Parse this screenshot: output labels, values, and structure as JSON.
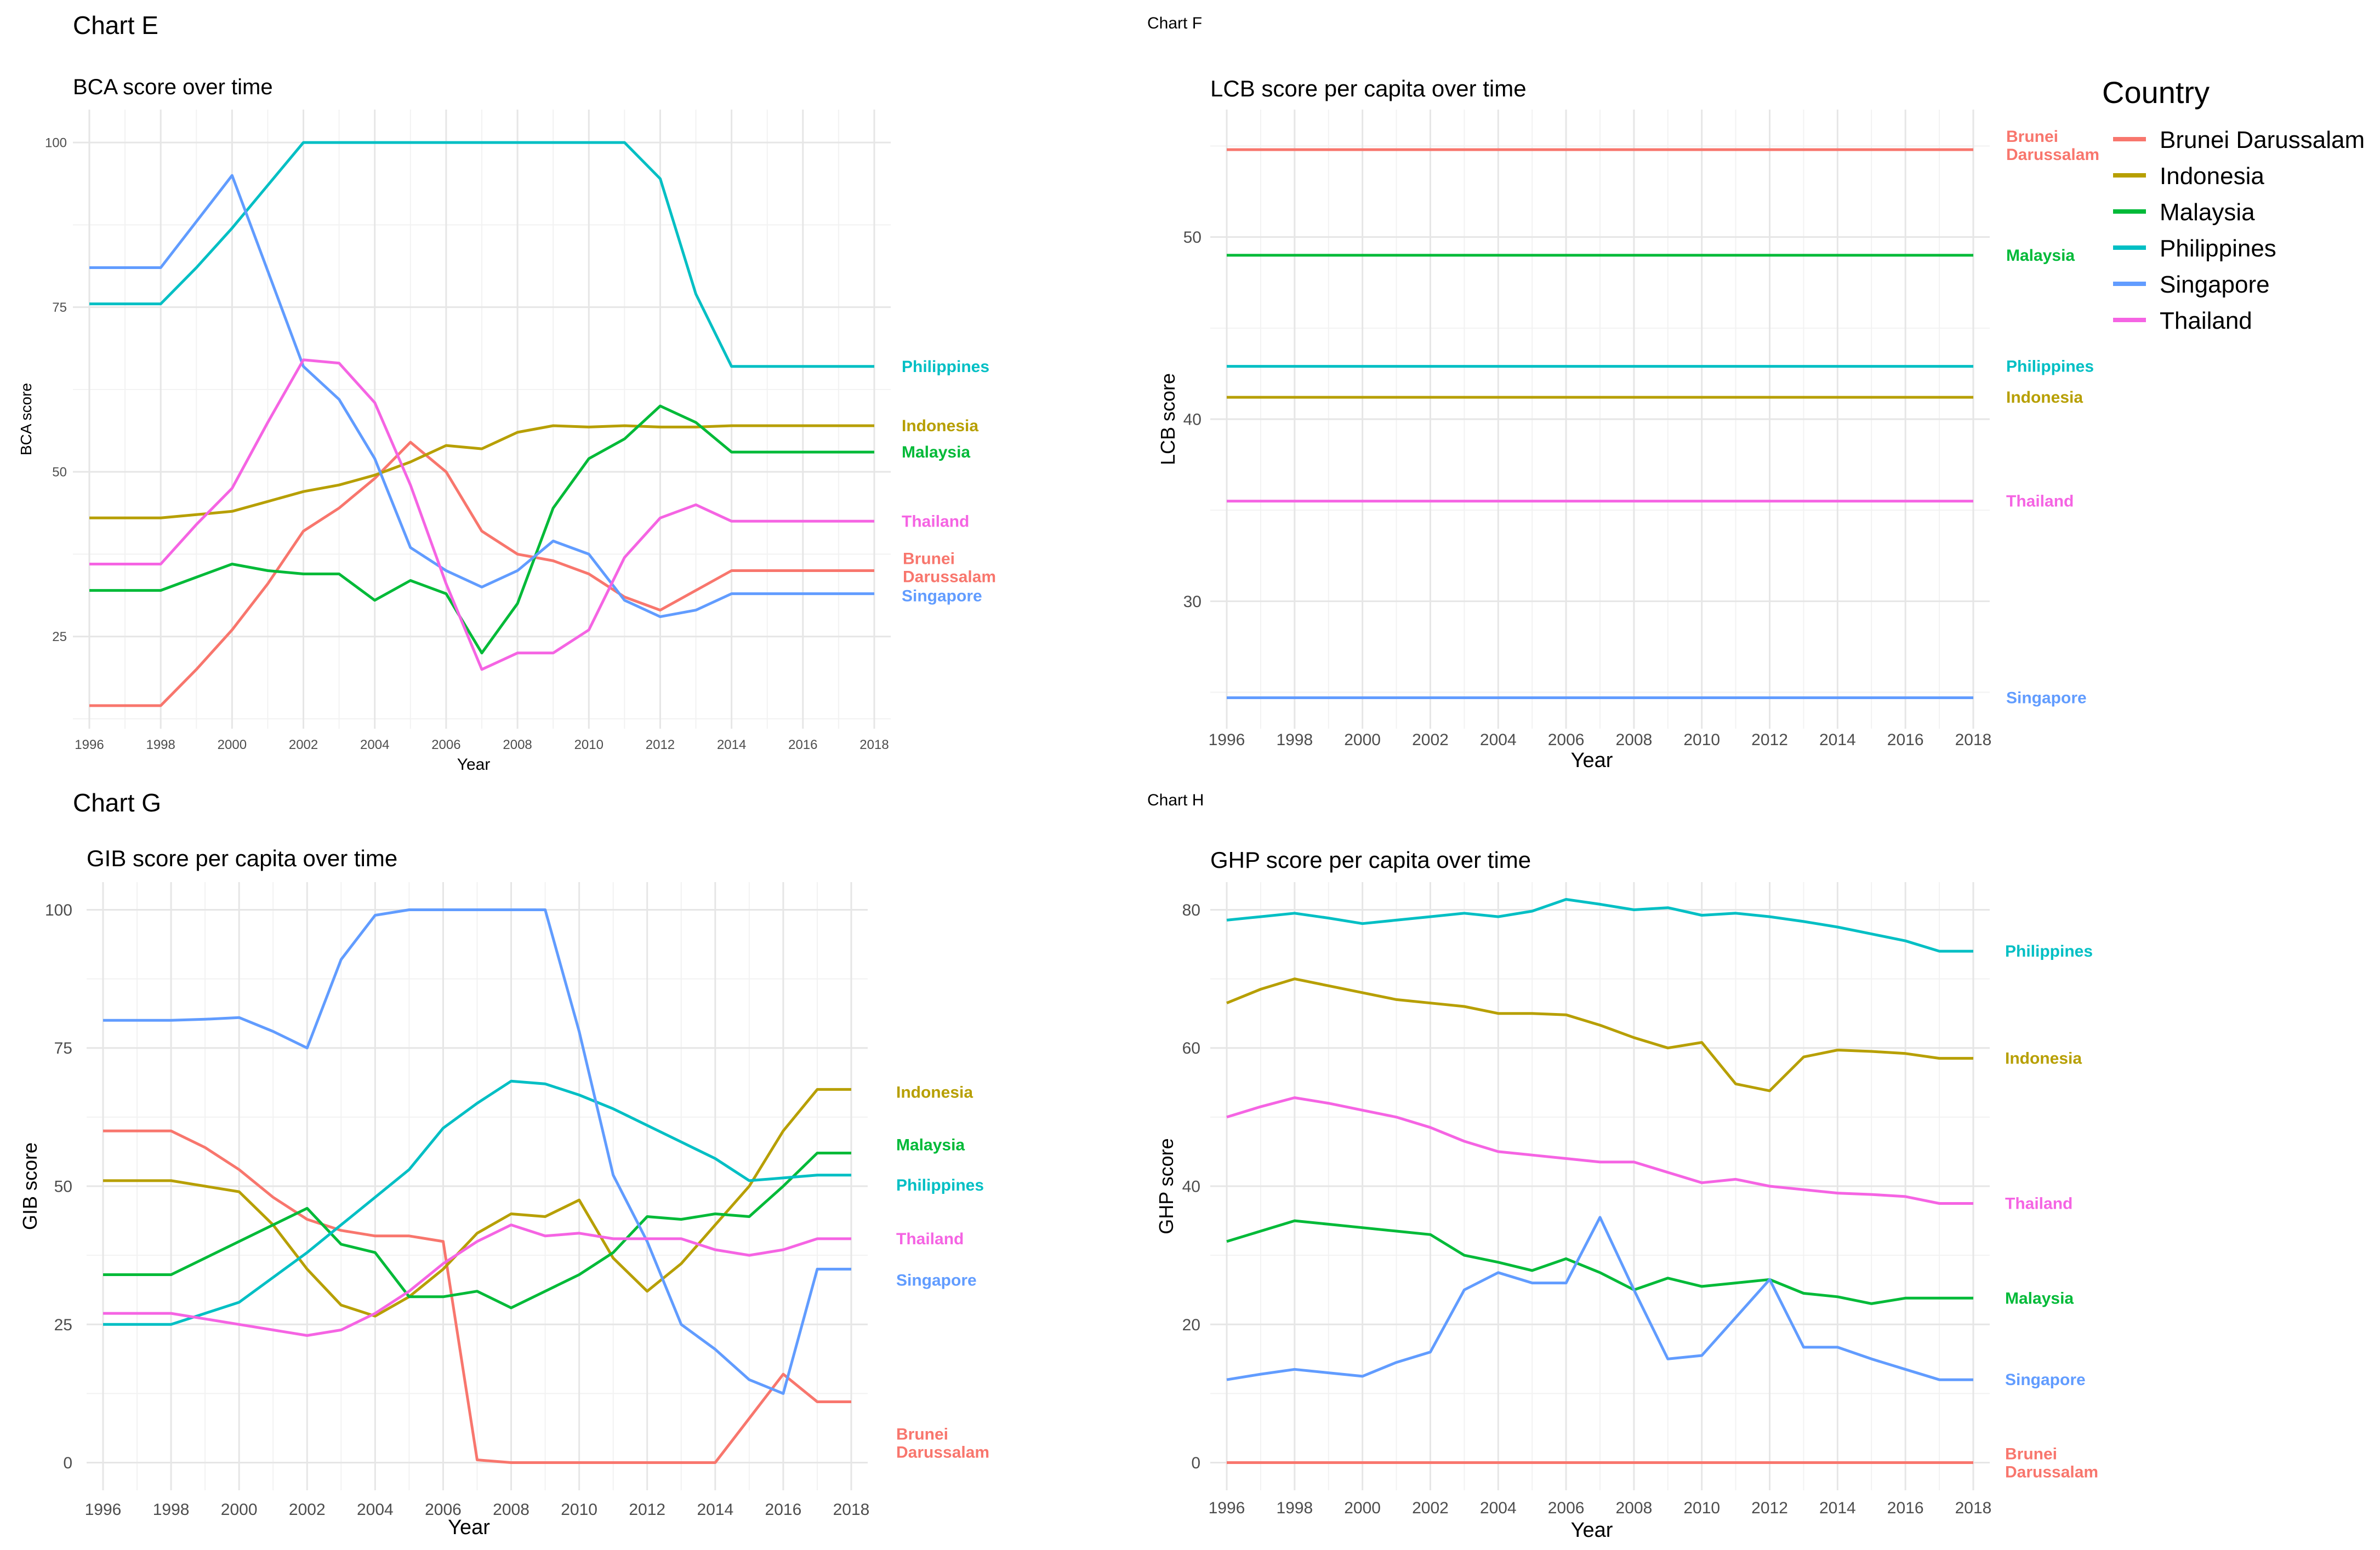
{
  "colors": {
    "Brunei Darussalam": "#F8766D",
    "Indonesia": "#B79F00",
    "Malaysia": "#00BA38",
    "Philippines": "#00BFC4",
    "Singapore": "#619CFF",
    "Thailand": "#F564E3"
  },
  "legend": {
    "title": "Country",
    "items": [
      "Brunei Darussalam",
      "Indonesia",
      "Malaysia",
      "Philippines",
      "Singapore",
      "Thailand"
    ]
  },
  "chart_data": [
    {
      "id": "E",
      "heading": "Chart E",
      "type": "line",
      "title": "BCA score over time",
      "xlabel": "Year",
      "ylabel": "BCA score",
      "xlim": [
        1996,
        2018
      ],
      "ylim": [
        11,
        105
      ],
      "xticks": [
        1996,
        1998,
        2000,
        2002,
        2004,
        2006,
        2008,
        2010,
        2012,
        2014,
        2016,
        2018
      ],
      "yticks": [
        25,
        50,
        75,
        100
      ],
      "x": [
        1996,
        1997,
        1998,
        1999,
        2000,
        2001,
        2002,
        2003,
        2004,
        2005,
        2006,
        2007,
        2008,
        2009,
        2010,
        2011,
        2012,
        2013,
        2014,
        2015,
        2016,
        2017,
        2018
      ],
      "series": [
        {
          "name": "Brunei Darussalam",
          "label": "Brunei Darussalam",
          "values": [
            14.5,
            14.5,
            14.5,
            20,
            26,
            33,
            41,
            44.5,
            49,
            54.5,
            50,
            41,
            37.5,
            36.5,
            34.5,
            31,
            29,
            32,
            35,
            35,
            35,
            35,
            35
          ]
        },
        {
          "name": "Indonesia",
          "label": "Indonesia",
          "values": [
            43,
            43,
            43,
            43.5,
            44,
            45.5,
            47,
            48,
            49.5,
            51.5,
            54,
            53.5,
            56,
            57,
            56.8,
            57,
            56.8,
            56.8,
            57,
            57,
            57,
            57,
            57
          ]
        },
        {
          "name": "Malaysia",
          "label": "Malaysia",
          "values": [
            32,
            32,
            32,
            34,
            36,
            35,
            34.5,
            34.5,
            30.5,
            33.5,
            31.5,
            22.5,
            30,
            44.5,
            52,
            55,
            60,
            57.5,
            53,
            53,
            53,
            53,
            53
          ]
        },
        {
          "name": "Philippines",
          "label": "Philippines",
          "values": [
            75.5,
            75.5,
            75.5,
            81,
            87,
            93.5,
            100,
            100,
            100,
            100,
            100,
            100,
            100,
            100,
            100,
            100,
            94.5,
            77,
            66,
            66,
            66,
            66,
            66
          ]
        },
        {
          "name": "Singapore",
          "label": "Singapore",
          "values": [
            81,
            81,
            81,
            88,
            95,
            80.5,
            66,
            61,
            52,
            38.5,
            35,
            32.5,
            35,
            39.5,
            37.5,
            30.5,
            28,
            29,
            31.5,
            31.5,
            31.5,
            31.5,
            31.5
          ]
        },
        {
          "name": "Thailand",
          "label": "Thailand",
          "values": [
            36,
            36,
            36,
            42,
            47.5,
            57.5,
            67,
            66.5,
            60.5,
            48,
            33,
            20,
            22.5,
            22.5,
            26,
            37,
            43,
            45,
            42.5,
            42.5,
            42.5,
            42.5,
            42.5
          ]
        }
      ]
    },
    {
      "id": "F",
      "heading": "Chart F",
      "type": "line",
      "title": "LCB score per capita over time",
      "xlabel": "Year",
      "ylabel": "LCB score",
      "xlim": [
        1996,
        2018
      ],
      "ylim": [
        23,
        57
      ],
      "xticks": [
        1996,
        1998,
        2000,
        2002,
        2004,
        2006,
        2008,
        2010,
        2012,
        2014,
        2016,
        2018
      ],
      "yticks": [
        30,
        40,
        50
      ],
      "x": [
        1996,
        2018
      ],
      "series": [
        {
          "name": "Brunei Darussalam",
          "label": "Brunei Darussalam",
          "values": [
            54.8,
            54.8
          ]
        },
        {
          "name": "Indonesia",
          "label": "Indonesia",
          "values": [
            41.2,
            41.2
          ]
        },
        {
          "name": "Malaysia",
          "label": "Malaysia",
          "values": [
            49,
            49
          ]
        },
        {
          "name": "Philippines",
          "label": "Philippines",
          "values": [
            42.9,
            42.9
          ]
        },
        {
          "name": "Singapore",
          "label": "Singapore",
          "values": [
            24.7,
            24.7
          ]
        },
        {
          "name": "Thailand",
          "label": "Thailand",
          "values": [
            35.5,
            35.5
          ]
        }
      ]
    },
    {
      "id": "G",
      "heading": "Chart G",
      "type": "line",
      "title": "GIB score per capita over time",
      "xlabel": "Year",
      "ylabel": "GIB score",
      "xlim": [
        1996,
        2018
      ],
      "ylim": [
        -5,
        105
      ],
      "xticks": [
        1996,
        1998,
        2000,
        2002,
        2004,
        2006,
        2008,
        2010,
        2012,
        2014,
        2016,
        2018
      ],
      "yticks": [
        0,
        25,
        50,
        75,
        100
      ],
      "x": [
        1996,
        1997,
        1998,
        1999,
        2000,
        2001,
        2002,
        2003,
        2004,
        2005,
        2006,
        2007,
        2008,
        2009,
        2010,
        2011,
        2012,
        2013,
        2014,
        2015,
        2016,
        2017,
        2018
      ],
      "series": [
        {
          "name": "Brunei Darussalam",
          "label": "Brunei Darussalam",
          "values": [
            60,
            60,
            60,
            57,
            53,
            48,
            44,
            42,
            41,
            41,
            40,
            0.5,
            0,
            0,
            0,
            0,
            0,
            0,
            0,
            8,
            16,
            11,
            11
          ]
        },
        {
          "name": "Indonesia",
          "label": "Indonesia",
          "values": [
            51,
            51,
            51,
            50,
            49,
            43,
            35,
            28.5,
            26.5,
            30,
            35,
            41.5,
            45,
            44.5,
            47.5,
            37,
            31,
            36,
            43,
            50,
            60,
            67.5,
            67.5
          ]
        },
        {
          "name": "Malaysia",
          "label": "Malaysia",
          "values": [
            34,
            34,
            34,
            37,
            40,
            43,
            46,
            39.5,
            38,
            30,
            30,
            31,
            28,
            31,
            34,
            38,
            44.5,
            44,
            45,
            44.5,
            50,
            56,
            56
          ]
        },
        {
          "name": "Philippines",
          "label": "Philippines",
          "values": [
            25,
            25,
            25,
            27,
            29,
            33.5,
            38,
            43,
            48,
            53,
            60.5,
            65,
            69,
            68.5,
            66.5,
            64,
            61,
            58,
            55,
            51,
            51.5,
            52,
            52
          ]
        },
        {
          "name": "Singapore",
          "label": "Singapore",
          "values": [
            80,
            80,
            80,
            80.2,
            80.5,
            78,
            75,
            91,
            99,
            100,
            100,
            100,
            100,
            100,
            78,
            52,
            40,
            25,
            20.5,
            15,
            12.5,
            35,
            35
          ]
        },
        {
          "name": "Thailand",
          "label": "Thailand",
          "values": [
            27,
            27,
            27,
            26,
            25,
            24,
            23,
            24,
            27,
            31,
            36,
            40,
            43,
            41,
            41.5,
            40.5,
            40.5,
            40.5,
            38.5,
            37.5,
            38.5,
            40.5,
            40.5
          ]
        }
      ]
    },
    {
      "id": "H",
      "heading": "Chart H",
      "type": "line",
      "title": "GHP score per capita over time",
      "xlabel": "Year",
      "ylabel": "GHP score",
      "xlim": [
        1996,
        2018
      ],
      "ylim": [
        -4,
        84
      ],
      "xticks": [
        1996,
        1998,
        2000,
        2002,
        2004,
        2006,
        2008,
        2010,
        2012,
        2014,
        2016,
        2018
      ],
      "yticks": [
        0,
        20,
        40,
        60,
        80
      ],
      "x": [
        1996,
        1997,
        1998,
        1999,
        2000,
        2001,
        2002,
        2003,
        2004,
        2005,
        2006,
        2007,
        2008,
        2009,
        2010,
        2011,
        2012,
        2013,
        2014,
        2015,
        2016,
        2017,
        2018
      ],
      "series": [
        {
          "name": "Brunei Darussalam",
          "label": "Brunei Darussalam",
          "values": [
            0,
            0,
            0,
            0,
            0,
            0,
            0,
            0,
            0,
            0,
            0,
            0,
            0,
            0,
            0,
            0,
            0,
            0,
            0,
            0,
            0,
            0,
            0
          ]
        },
        {
          "name": "Indonesia",
          "label": "Indonesia",
          "values": [
            66.5,
            68.5,
            70,
            69,
            68,
            67,
            66.5,
            66,
            65,
            65,
            64.8,
            63.3,
            61.5,
            60,
            60.8,
            54.8,
            53.8,
            58.7,
            59.7,
            59.5,
            59.2,
            58.5,
            58.5
          ]
        },
        {
          "name": "Malaysia",
          "label": "Malaysia",
          "values": [
            32,
            33.5,
            35,
            34.5,
            34,
            33.5,
            33,
            30,
            29,
            27.8,
            29.5,
            27.5,
            25,
            26.7,
            25.5,
            26,
            26.5,
            24.5,
            24,
            23,
            23.8,
            23.8,
            23.8
          ]
        },
        {
          "name": "Philippines",
          "label": "Philippines",
          "values": [
            78.5,
            79,
            79.5,
            78.8,
            78,
            78.5,
            79,
            79.5,
            79,
            79.8,
            81.5,
            80.8,
            80,
            80.3,
            79.2,
            79.5,
            79,
            78.3,
            77.5,
            76.5,
            75.5,
            74,
            74
          ]
        },
        {
          "name": "Singapore",
          "label": "Singapore",
          "values": [
            12,
            12.8,
            13.5,
            13,
            12.5,
            14.5,
            16,
            25,
            27.5,
            26,
            26,
            35.5,
            25,
            15,
            15.5,
            21,
            26.5,
            16.7,
            16.7,
            15,
            13.5,
            12,
            12
          ]
        },
        {
          "name": "Thailand",
          "label": "Thailand",
          "values": [
            50,
            51.5,
            52.8,
            52,
            51,
            50,
            48.5,
            46.5,
            45,
            44.5,
            44,
            43.5,
            43.5,
            42,
            40.5,
            41,
            40,
            39.5,
            39,
            38.8,
            38.5,
            37.5,
            37.5
          ]
        }
      ]
    }
  ]
}
